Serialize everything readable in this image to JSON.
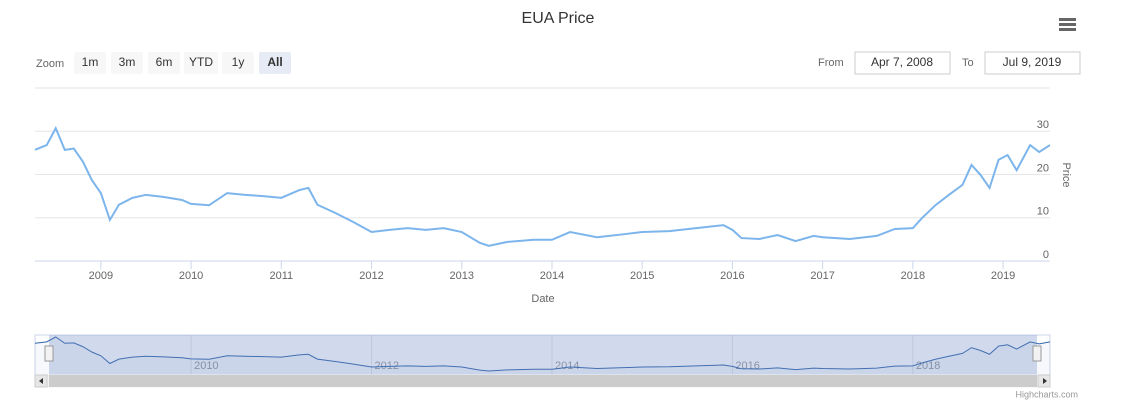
{
  "chart_data": {
    "type": "line",
    "title": "EUA Price",
    "zoom_label": "Zoom",
    "range_buttons": [
      "1m",
      "3m",
      "6m",
      "YTD",
      "1y",
      "All"
    ],
    "selected_button": "All",
    "from_label": "From",
    "from_date": "Apr 7, 2008",
    "to_label": "To",
    "to_date": "Jul 9, 2019",
    "x_label": "Date",
    "y_label": "Price",
    "credits": "Highcharts.com",
    "xlim": [
      2008.27,
      2019.52
    ],
    "xticks": [
      2009,
      2010,
      2011,
      2012,
      2013,
      2014,
      2015,
      2016,
      2017,
      2018,
      2019
    ],
    "ylim": [
      0,
      40
    ],
    "yticks": [
      0,
      10,
      20,
      30
    ],
    "grid": true,
    "navigator_xticks": [
      2010,
      2012,
      2014,
      2016,
      2018
    ],
    "series": [
      {
        "name": "Price",
        "color": "#7cb5ec",
        "x": [
          2008.27,
          2008.4,
          2008.5,
          2008.6,
          2008.7,
          2008.8,
          2008.9,
          2009.0,
          2009.1,
          2009.2,
          2009.35,
          2009.5,
          2009.7,
          2009.9,
          2010.0,
          2010.2,
          2010.4,
          2010.6,
          2010.8,
          2011.0,
          2011.2,
          2011.3,
          2011.4,
          2011.6,
          2011.8,
          2012.0,
          2012.2,
          2012.4,
          2012.6,
          2012.8,
          2013.0,
          2013.2,
          2013.3,
          2013.5,
          2013.8,
          2014.0,
          2014.2,
          2014.5,
          2014.8,
          2015.0,
          2015.3,
          2015.6,
          2015.9,
          2016.0,
          2016.1,
          2016.3,
          2016.5,
          2016.7,
          2016.9,
          2017.0,
          2017.3,
          2017.6,
          2017.8,
          2018.0,
          2018.1,
          2018.25,
          2018.4,
          2018.55,
          2018.65,
          2018.75,
          2018.85,
          2018.95,
          2019.05,
          2019.15,
          2019.3,
          2019.4,
          2019.52
        ],
        "values": [
          25.7,
          26.8,
          30.7,
          25.7,
          26,
          23,
          18.7,
          15.7,
          9.5,
          13,
          14.6,
          15.3,
          14.8,
          14.1,
          13.2,
          12.9,
          15.7,
          15.3,
          15,
          14.6,
          16.4,
          16.9,
          13,
          11.1,
          9,
          6.7,
          7.2,
          7.6,
          7.2,
          7.6,
          6.7,
          4.2,
          3.5,
          4.4,
          4.9,
          4.9,
          6.7,
          5.5,
          6.2,
          6.7,
          6.9,
          7.6,
          8.3,
          7.2,
          5.3,
          5.1,
          6,
          4.6,
          5.8,
          5.5,
          5.1,
          5.8,
          7.4,
          7.6,
          9.9,
          12.9,
          15.3,
          17.6,
          22.2,
          19.9,
          16.9,
          23.4,
          24.5,
          21,
          26.8,
          25.2,
          26.8
        ]
      }
    ]
  }
}
